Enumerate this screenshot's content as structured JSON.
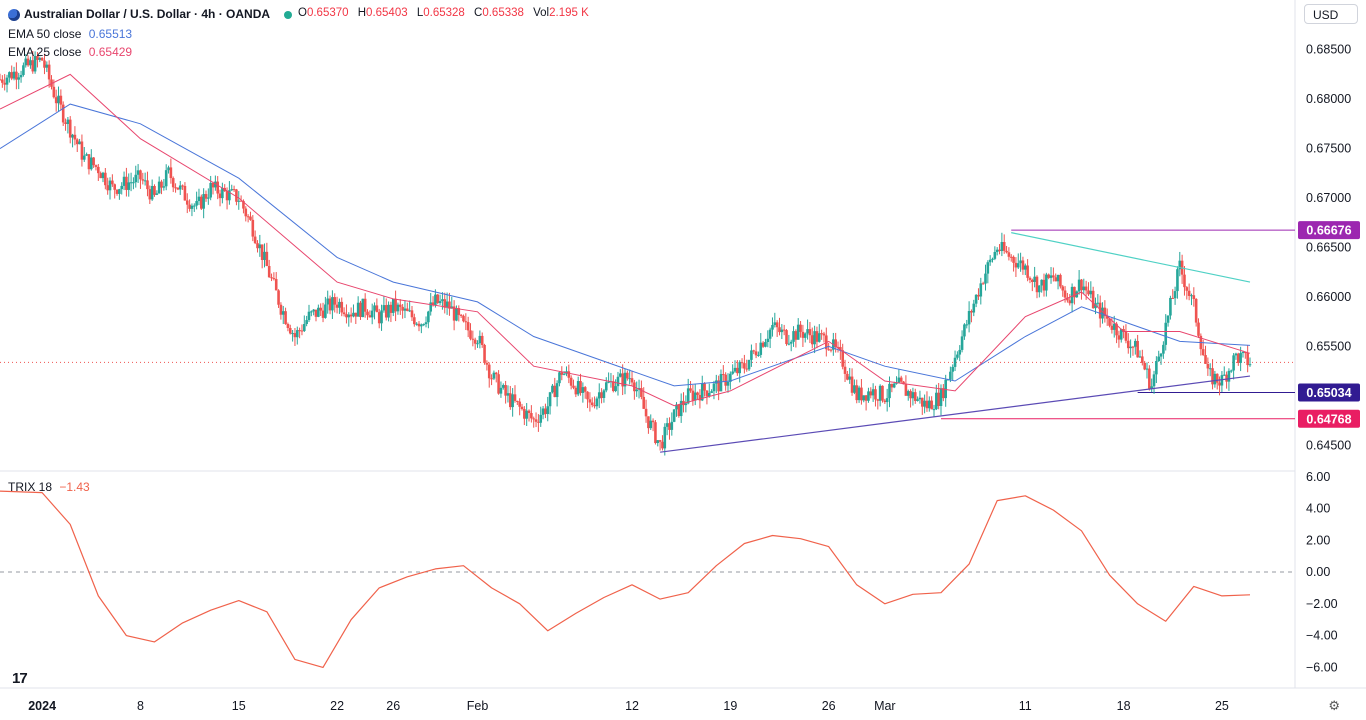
{
  "header": {
    "symbol": "Australian Dollar / U.S. Dollar · 4h · OANDA",
    "ohlc": [
      {
        "k": "O",
        "v": "0.65370"
      },
      {
        "k": "H",
        "v": "0.65403"
      },
      {
        "k": "L",
        "v": "0.65328"
      },
      {
        "k": "C",
        "v": "0.65338"
      },
      {
        "k": "Vol",
        "v": "2.195 K"
      }
    ],
    "currency": "USD"
  },
  "indicators": {
    "ema50": {
      "label": "EMA 50 close",
      "value": "0.65513",
      "color": "#4a76d9"
    },
    "ema25": {
      "label": "EMA 25 close",
      "value": "0.65429",
      "color": "#e8466e"
    },
    "trix": {
      "label": "TRIX 18",
      "value": "−1.43",
      "color": "#f0624b"
    }
  },
  "colors": {
    "up": "#26a69a",
    "down": "#ef5350",
    "trend_line": "#5b4bb5",
    "resistance_line": "#4fd1c5",
    "level_high": "#9c27b0",
    "level_mid": "#311b92",
    "level_low": "#e91e63"
  },
  "price_levels": [
    {
      "label": "0.66676",
      "value": 0.66676,
      "color": "#9c27b0"
    },
    {
      "label": "0.65034",
      "value": 0.65034,
      "color": "#311b92"
    },
    {
      "label": "0.64768",
      "value": 0.64768,
      "color": "#e91e63"
    }
  ],
  "chart_data": [
    {
      "type": "candlestick",
      "ylim": [
        0.6425,
        0.688
      ],
      "y_ticks": [
        "0.68500",
        "0.68000",
        "0.67500",
        "0.67000",
        "0.66500",
        "0.66000",
        "0.65500",
        "0.65000",
        "0.64500"
      ],
      "y_tick_values": [
        0.685,
        0.68,
        0.675,
        0.67,
        0.665,
        0.66,
        0.655,
        0.65,
        0.645
      ],
      "x_labels": [
        "2024",
        "8",
        "15",
        "22",
        "26",
        "Feb",
        "12",
        "19",
        "26",
        "Mar",
        "11",
        "18",
        "25"
      ],
      "x_label_dates": [
        "2024-01-01",
        "2024-01-08",
        "2024-01-15",
        "2024-01-22",
        "2024-01-26",
        "2024-02-01",
        "2024-02-12",
        "2024-02-19",
        "2024-02-26",
        "2024-03-01",
        "2024-03-11",
        "2024-03-18",
        "2024-03-25"
      ],
      "x_range": [
        "2023-12-29",
        "2024-03-27"
      ],
      "close_path": [
        [
          "2023-12-29",
          0.682
        ],
        [
          "2024-01-01",
          0.684
        ],
        [
          "2024-01-02",
          0.68
        ],
        [
          "2024-01-03",
          0.677
        ],
        [
          "2024-01-04",
          0.674
        ],
        [
          "2024-01-05",
          0.673
        ],
        [
          "2024-01-06",
          0.671
        ],
        [
          "2024-01-08",
          0.672
        ],
        [
          "2024-01-09",
          0.67
        ],
        [
          "2024-01-10",
          0.6725
        ],
        [
          "2024-01-11",
          0.6705
        ],
        [
          "2024-01-12",
          0.669
        ],
        [
          "2024-01-13",
          0.671
        ],
        [
          "2024-01-15",
          0.67
        ],
        [
          "2024-01-16",
          0.667
        ],
        [
          "2024-01-17",
          0.663
        ],
        [
          "2024-01-18",
          0.659
        ],
        [
          "2024-01-19",
          0.656
        ],
        [
          "2024-01-20",
          0.658
        ],
        [
          "2024-01-22",
          0.6595
        ],
        [
          "2024-01-23",
          0.6585
        ],
        [
          "2024-01-24",
          0.659
        ],
        [
          "2024-01-25",
          0.658
        ],
        [
          "2024-01-26",
          0.659
        ],
        [
          "2024-01-28",
          0.6575
        ],
        [
          "2024-01-29",
          0.6595
        ],
        [
          "2024-01-30",
          0.659
        ],
        [
          "2024-01-31",
          0.657
        ],
        [
          "2024-02-01",
          0.656
        ],
        [
          "2024-02-02",
          0.652
        ],
        [
          "2024-02-03",
          0.65
        ],
        [
          "2024-02-05",
          0.6475
        ],
        [
          "2024-02-06",
          0.649
        ],
        [
          "2024-02-07",
          0.6525
        ],
        [
          "2024-02-08",
          0.651
        ],
        [
          "2024-02-09",
          0.649
        ],
        [
          "2024-02-10",
          0.651
        ],
        [
          "2024-02-12",
          0.652
        ],
        [
          "2024-02-13",
          0.648
        ],
        [
          "2024-02-14",
          0.645
        ],
        [
          "2024-02-15",
          0.648
        ],
        [
          "2024-02-16",
          0.65
        ],
        [
          "2024-02-18",
          0.651
        ],
        [
          "2024-02-19",
          0.652
        ],
        [
          "2024-02-20",
          0.653
        ],
        [
          "2024-02-21",
          0.655
        ],
        [
          "2024-02-22",
          0.657
        ],
        [
          "2024-02-23",
          0.656
        ],
        [
          "2024-02-24",
          0.6565
        ],
        [
          "2024-02-26",
          0.6555
        ],
        [
          "2024-02-27",
          0.6535
        ],
        [
          "2024-02-28",
          0.65
        ],
        [
          "2024-02-29",
          0.6505
        ],
        [
          "2024-03-01",
          0.65
        ],
        [
          "2024-03-02",
          0.651
        ],
        [
          "2024-03-04",
          0.649
        ],
        [
          "2024-03-05",
          0.65
        ],
        [
          "2024-03-06",
          0.654
        ],
        [
          "2024-03-07",
          0.658
        ],
        [
          "2024-03-08",
          0.662
        ],
        [
          "2024-03-09",
          0.665
        ],
        [
          "2024-03-11",
          0.663
        ],
        [
          "2024-03-12",
          0.661
        ],
        [
          "2024-03-13",
          0.662
        ],
        [
          "2024-03-14",
          0.66
        ],
        [
          "2024-03-15",
          0.6615
        ],
        [
          "2024-03-16",
          0.659
        ],
        [
          "2024-03-18",
          0.656
        ],
        [
          "2024-03-19",
          0.6545
        ],
        [
          "2024-03-20",
          0.651
        ],
        [
          "2024-03-21",
          0.657
        ],
        [
          "2024-03-22",
          0.663
        ],
        [
          "2024-03-23",
          0.659
        ],
        [
          "2024-03-24",
          0.652
        ],
        [
          "2024-03-25",
          0.6515
        ],
        [
          "2024-03-26",
          0.654
        ],
        [
          "2024-03-27",
          0.6534
        ]
      ],
      "ema50_path": [
        [
          "2023-12-29",
          0.675
        ],
        [
          "2024-01-03",
          0.6795
        ],
        [
          "2024-01-08",
          0.6775
        ],
        [
          "2024-01-15",
          0.672
        ],
        [
          "2024-01-22",
          0.664
        ],
        [
          "2024-01-26",
          0.6615
        ],
        [
          "2024-02-01",
          0.6595
        ],
        [
          "2024-02-05",
          0.656
        ],
        [
          "2024-02-12",
          0.6525
        ],
        [
          "2024-02-15",
          0.651
        ],
        [
          "2024-02-19",
          0.6515
        ],
        [
          "2024-02-26",
          0.655
        ],
        [
          "2024-03-01",
          0.653
        ],
        [
          "2024-03-06",
          0.6515
        ],
        [
          "2024-03-11",
          0.656
        ],
        [
          "2024-03-15",
          0.659
        ],
        [
          "2024-03-18",
          0.6575
        ],
        [
          "2024-03-22",
          0.6555
        ],
        [
          "2024-03-27",
          0.6551
        ]
      ],
      "ema25_path": [
        [
          "2023-12-29",
          0.679
        ],
        [
          "2024-01-03",
          0.6825
        ],
        [
          "2024-01-08",
          0.676
        ],
        [
          "2024-01-15",
          0.67
        ],
        [
          "2024-01-22",
          0.6615
        ],
        [
          "2024-01-26",
          0.6598
        ],
        [
          "2024-02-01",
          0.6585
        ],
        [
          "2024-02-05",
          0.653
        ],
        [
          "2024-02-12",
          0.651
        ],
        [
          "2024-02-15",
          0.649
        ],
        [
          "2024-02-19",
          0.6505
        ],
        [
          "2024-02-26",
          0.6555
        ],
        [
          "2024-03-01",
          0.6515
        ],
        [
          "2024-03-06",
          0.6505
        ],
        [
          "2024-03-11",
          0.658
        ],
        [
          "2024-03-15",
          0.6605
        ],
        [
          "2024-03-18",
          0.6565
        ],
        [
          "2024-03-22",
          0.6565
        ],
        [
          "2024-03-27",
          0.6543
        ]
      ],
      "last_price": 0.65338,
      "trend_lines": [
        {
          "name": "support",
          "from": [
            "2024-02-14",
            0.6443
          ],
          "to": [
            "2024-03-27",
            0.652
          ]
        },
        {
          "name": "resistance",
          "from": [
            "2024-03-10",
            0.6665
          ],
          "to": [
            "2024-03-27",
            0.6615
          ]
        }
      ]
    },
    {
      "type": "line",
      "name": "TRIX 18",
      "ylim": [
        -7.3,
        6.3
      ],
      "y_ticks": [
        "6.00",
        "4.00",
        "2.00",
        "0.00",
        "−2.00",
        "−4.00",
        "−6.00"
      ],
      "y_tick_values": [
        6,
        4,
        2,
        0,
        -2,
        -4,
        -6
      ],
      "zero_line": true,
      "x": [
        "2023-12-29",
        "2024-01-01",
        "2024-01-03",
        "2024-01-05",
        "2024-01-07",
        "2024-01-09",
        "2024-01-11",
        "2024-01-13",
        "2024-01-15",
        "2024-01-17",
        "2024-01-19",
        "2024-01-21",
        "2024-01-23",
        "2024-01-25",
        "2024-01-27",
        "2024-01-29",
        "2024-01-31",
        "2024-02-02",
        "2024-02-04",
        "2024-02-06",
        "2024-02-08",
        "2024-02-10",
        "2024-02-12",
        "2024-02-14",
        "2024-02-16",
        "2024-02-18",
        "2024-02-20",
        "2024-02-22",
        "2024-02-24",
        "2024-02-26",
        "2024-02-28",
        "2024-03-01",
        "2024-03-03",
        "2024-03-05",
        "2024-03-07",
        "2024-03-09",
        "2024-03-11",
        "2024-03-13",
        "2024-03-15",
        "2024-03-17",
        "2024-03-19",
        "2024-03-21",
        "2024-03-23",
        "2024-03-25",
        "2024-03-27"
      ],
      "values": [
        5.1,
        5.0,
        3.0,
        -1.5,
        -4.0,
        -4.4,
        -3.2,
        -2.4,
        -1.8,
        -2.5,
        -5.5,
        -6.0,
        -3.0,
        -1.0,
        -0.3,
        0.2,
        0.4,
        -1.0,
        -2.0,
        -3.7,
        -2.6,
        -1.6,
        -0.8,
        -1.7,
        -1.3,
        0.4,
        1.8,
        2.3,
        2.1,
        1.6,
        -0.8,
        -2.0,
        -1.4,
        -1.3,
        0.5,
        4.5,
        4.8,
        3.9,
        2.6,
        -0.2,
        -2.0,
        -3.1,
        -0.9,
        -1.5,
        -1.43
      ]
    }
  ]
}
